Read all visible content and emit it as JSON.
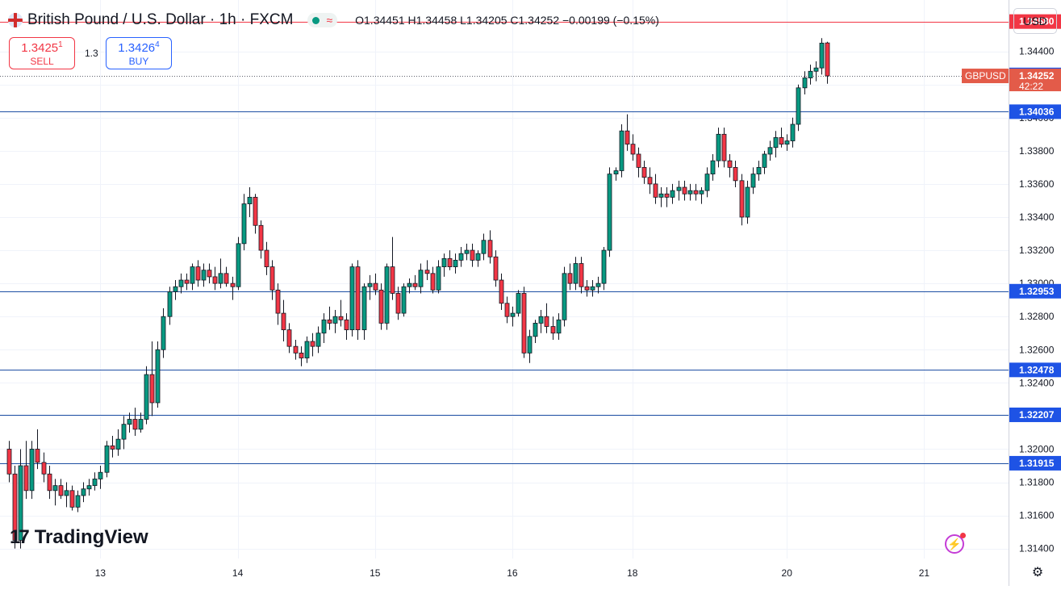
{
  "header": {
    "symbol_title": "British Pound / U.S. Dollar · 1h · FXCM",
    "ohlc": "O1.34451 H1.34458 L1.34205 C1.34252 −0.00199 (−0.15%)"
  },
  "trade": {
    "sell_price_main": "1.3425",
    "sell_price_sup": "1",
    "sell_label": "SELL",
    "buy_price_main": "1.3426",
    "buy_price_sup": "4",
    "buy_label": "BUY",
    "spread": "1.3"
  },
  "currency": "USD",
  "logo": "TradingView",
  "colors": {
    "up": "#089981",
    "down": "#f23645",
    "level_line": "#1e4fa3",
    "resistance_line": "#f23645",
    "current_price_tag": "#e35b49",
    "level_tag": "#1e53e5"
  },
  "icons": [
    "flag-icon",
    "market-status-icon",
    "bolt-icon",
    "settings-icon"
  ],
  "chart_data": {
    "type": "candlestick",
    "symbol": "GBPUSD",
    "interval": "1h",
    "ylim": [
      1.3134,
      1.3471
    ],
    "y_ticks": [
      "1.34400",
      "1.34200",
      "1.34000",
      "1.33800",
      "1.33600",
      "1.33400",
      "1.33200",
      "1.33000",
      "1.32800",
      "1.32600",
      "1.32400",
      "1.32200",
      "1.32000",
      "1.31800",
      "1.31600",
      "1.31400"
    ],
    "x_tick_labels": [
      {
        "label": "13",
        "bar": 16
      },
      {
        "label": "14",
        "bar": 40
      },
      {
        "label": "15",
        "bar": 64
      },
      {
        "label": "16",
        "bar": 88
      },
      {
        "label": "18",
        "bar": 109
      },
      {
        "label": "20",
        "bar": 136
      },
      {
        "label": "21",
        "bar": 160
      }
    ],
    "horizontal_levels": [
      {
        "value": 1.3458,
        "label": "1.34580",
        "kind": "resistance"
      },
      {
        "value": 1.34036,
        "label": "1.34036",
        "kind": "level"
      },
      {
        "value": 1.32953,
        "label": "1.32953",
        "kind": "level"
      },
      {
        "value": 1.32478,
        "label": "1.32478",
        "kind": "level"
      },
      {
        "value": 1.32207,
        "label": "1.32207",
        "kind": "level"
      },
      {
        "value": 1.31915,
        "label": "1.31915",
        "kind": "level"
      }
    ],
    "ask_price": "1.34258",
    "last_price": {
      "value": 1.34252,
      "label": "1.34252",
      "symbol_label": "GBPUSD",
      "countdown": "42:22"
    },
    "candles": [
      [
        1.32,
        1.3205,
        1.318,
        1.3185
      ],
      [
        1.3185,
        1.319,
        1.314,
        1.3145
      ],
      [
        1.3145,
        1.32,
        1.314,
        1.319
      ],
      [
        1.319,
        1.3205,
        1.317,
        1.3175
      ],
      [
        1.3175,
        1.3205,
        1.317,
        1.32
      ],
      [
        1.32,
        1.3212,
        1.3188,
        1.3192
      ],
      [
        1.3192,
        1.3198,
        1.318,
        1.3185
      ],
      [
        1.3185,
        1.319,
        1.317,
        1.3175
      ],
      [
        1.3175,
        1.3182,
        1.3166,
        1.3178
      ],
      [
        1.3178,
        1.3182,
        1.317,
        1.3172
      ],
      [
        1.3172,
        1.318,
        1.3165,
        1.3175
      ],
      [
        1.3175,
        1.3178,
        1.3163,
        1.3165
      ],
      [
        1.3165,
        1.3175,
        1.3162,
        1.3172
      ],
      [
        1.3172,
        1.318,
        1.3168,
        1.3176
      ],
      [
        1.3176,
        1.3182,
        1.3172,
        1.3178
      ],
      [
        1.3178,
        1.3186,
        1.3175,
        1.3182
      ],
      [
        1.3182,
        1.319,
        1.3176,
        1.3186
      ],
      [
        1.3186,
        1.3205,
        1.3183,
        1.3202
      ],
      [
        1.3202,
        1.3208,
        1.3195,
        1.32
      ],
      [
        1.32,
        1.3212,
        1.3196,
        1.3206
      ],
      [
        1.3206,
        1.322,
        1.32,
        1.3215
      ],
      [
        1.3215,
        1.3222,
        1.321,
        1.3218
      ],
      [
        1.3218,
        1.3225,
        1.3208,
        1.3212
      ],
      [
        1.3212,
        1.3222,
        1.321,
        1.3218
      ],
      [
        1.3218,
        1.325,
        1.3215,
        1.3245
      ],
      [
        1.3245,
        1.3265,
        1.322,
        1.3228
      ],
      [
        1.3228,
        1.3265,
        1.3225,
        1.326
      ],
      [
        1.326,
        1.3285,
        1.3255,
        1.328
      ],
      [
        1.328,
        1.3298,
        1.3275,
        1.3295
      ],
      [
        1.3295,
        1.3302,
        1.329,
        1.3298
      ],
      [
        1.3298,
        1.3306,
        1.3294,
        1.3302
      ],
      [
        1.3302,
        1.3306,
        1.3296,
        1.33
      ],
      [
        1.33,
        1.3312,
        1.3296,
        1.331
      ],
      [
        1.331,
        1.3314,
        1.3298,
        1.3302
      ],
      [
        1.3302,
        1.3312,
        1.3298,
        1.3308
      ],
      [
        1.3308,
        1.3312,
        1.33,
        1.3304
      ],
      [
        1.3304,
        1.331,
        1.3296,
        1.33
      ],
      [
        1.33,
        1.3315,
        1.3297,
        1.3306
      ],
      [
        1.3306,
        1.331,
        1.3298,
        1.33
      ],
      [
        1.33,
        1.3304,
        1.329,
        1.3298
      ],
      [
        1.3298,
        1.3328,
        1.3296,
        1.3324
      ],
      [
        1.3324,
        1.3354,
        1.332,
        1.3348
      ],
      [
        1.3348,
        1.3358,
        1.334,
        1.3352
      ],
      [
        1.3352,
        1.3354,
        1.333,
        1.3335
      ],
      [
        1.3335,
        1.3338,
        1.3315,
        1.332
      ],
      [
        1.332,
        1.3325,
        1.3305,
        1.331
      ],
      [
        1.331,
        1.3314,
        1.329,
        1.3296
      ],
      [
        1.3296,
        1.33,
        1.3275,
        1.3282
      ],
      [
        1.3282,
        1.329,
        1.3265,
        1.3272
      ],
      [
        1.3272,
        1.3276,
        1.3258,
        1.3262
      ],
      [
        1.3262,
        1.3266,
        1.3254,
        1.3258
      ],
      [
        1.3258,
        1.3262,
        1.325,
        1.3255
      ],
      [
        1.3255,
        1.3268,
        1.3252,
        1.3265
      ],
      [
        1.3265,
        1.327,
        1.3256,
        1.3262
      ],
      [
        1.3262,
        1.3274,
        1.3258,
        1.327
      ],
      [
        1.327,
        1.3282,
        1.3264,
        1.3278
      ],
      [
        1.3278,
        1.3286,
        1.3272,
        1.3276
      ],
      [
        1.3276,
        1.3284,
        1.327,
        1.328
      ],
      [
        1.328,
        1.329,
        1.3274,
        1.3278
      ],
      [
        1.3278,
        1.3282,
        1.3266,
        1.3272
      ],
      [
        1.3272,
        1.3312,
        1.3268,
        1.331
      ],
      [
        1.331,
        1.3314,
        1.3266,
        1.3272
      ],
      [
        1.3272,
        1.33,
        1.3266,
        1.3298
      ],
      [
        1.3298,
        1.3305,
        1.329,
        1.33
      ],
      [
        1.33,
        1.3306,
        1.3293,
        1.3296
      ],
      [
        1.3296,
        1.33,
        1.3272,
        1.3276
      ],
      [
        1.3276,
        1.3312,
        1.3272,
        1.331
      ],
      [
        1.331,
        1.3328,
        1.329,
        1.3294
      ],
      [
        1.3294,
        1.3298,
        1.3278,
        1.3282
      ],
      [
        1.3282,
        1.33,
        1.328,
        1.3298
      ],
      [
        1.3298,
        1.3303,
        1.3294,
        1.33
      ],
      [
        1.33,
        1.3305,
        1.3296,
        1.3298
      ],
      [
        1.3298,
        1.3312,
        1.3294,
        1.3308
      ],
      [
        1.3308,
        1.3314,
        1.3302,
        1.3306
      ],
      [
        1.3306,
        1.331,
        1.3294,
        1.3296
      ],
      [
        1.3296,
        1.3314,
        1.3294,
        1.331
      ],
      [
        1.331,
        1.3318,
        1.3304,
        1.3315
      ],
      [
        1.3315,
        1.332,
        1.3308,
        1.331
      ],
      [
        1.331,
        1.3318,
        1.3306,
        1.3314
      ],
      [
        1.3314,
        1.3322,
        1.331,
        1.3318
      ],
      [
        1.3318,
        1.3324,
        1.3314,
        1.332
      ],
      [
        1.332,
        1.3324,
        1.331,
        1.3314
      ],
      [
        1.3314,
        1.332,
        1.331,
        1.3318
      ],
      [
        1.3318,
        1.333,
        1.3314,
        1.3326
      ],
      [
        1.3326,
        1.3332,
        1.3312,
        1.3316
      ],
      [
        1.3316,
        1.332,
        1.3298,
        1.3302
      ],
      [
        1.3302,
        1.3306,
        1.3284,
        1.3288
      ],
      [
        1.3288,
        1.3292,
        1.3276,
        1.328
      ],
      [
        1.328,
        1.3286,
        1.3274,
        1.3282
      ],
      [
        1.3282,
        1.3296,
        1.328,
        1.3294
      ],
      [
        1.3294,
        1.3298,
        1.3255,
        1.3258
      ],
      [
        1.3258,
        1.3272,
        1.3252,
        1.3268
      ],
      [
        1.3268,
        1.3278,
        1.3264,
        1.3276
      ],
      [
        1.3276,
        1.3284,
        1.327,
        1.328
      ],
      [
        1.328,
        1.3288,
        1.327,
        1.3274
      ],
      [
        1.3274,
        1.328,
        1.3266,
        1.327
      ],
      [
        1.327,
        1.3282,
        1.3266,
        1.3278
      ],
      [
        1.3278,
        1.331,
        1.3274,
        1.3306
      ],
      [
        1.3306,
        1.3312,
        1.3296,
        1.33
      ],
      [
        1.33,
        1.3316,
        1.3296,
        1.3312
      ],
      [
        1.3312,
        1.3316,
        1.3294,
        1.3298
      ],
      [
        1.3298,
        1.3302,
        1.3292,
        1.3296
      ],
      [
        1.3296,
        1.3302,
        1.3292,
        1.3298
      ],
      [
        1.3298,
        1.3304,
        1.3294,
        1.33
      ],
      [
        1.33,
        1.3322,
        1.3296,
        1.332
      ],
      [
        1.332,
        1.337,
        1.3316,
        1.3366
      ],
      [
        1.3366,
        1.337,
        1.3362,
        1.3368
      ],
      [
        1.3368,
        1.3396,
        1.3364,
        1.3392
      ],
      [
        1.3392,
        1.3402,
        1.338,
        1.3384
      ],
      [
        1.3384,
        1.339,
        1.3374,
        1.3378
      ],
      [
        1.3378,
        1.3382,
        1.3364,
        1.337
      ],
      [
        1.337,
        1.3374,
        1.336,
        1.3364
      ],
      [
        1.3364,
        1.337,
        1.3354,
        1.336
      ],
      [
        1.336,
        1.3366,
        1.3348,
        1.3352
      ],
      [
        1.3352,
        1.3358,
        1.3346,
        1.3354
      ],
      [
        1.3354,
        1.3358,
        1.3346,
        1.3352
      ],
      [
        1.3352,
        1.336,
        1.3348,
        1.3356
      ],
      [
        1.3356,
        1.3362,
        1.335,
        1.3358
      ],
      [
        1.3358,
        1.3362,
        1.335,
        1.3354
      ],
      [
        1.3354,
        1.336,
        1.335,
        1.3356
      ],
      [
        1.3356,
        1.336,
        1.335,
        1.3354
      ],
      [
        1.3354,
        1.3358,
        1.3348,
        1.3356
      ],
      [
        1.3356,
        1.337,
        1.3352,
        1.3366
      ],
      [
        1.3366,
        1.3378,
        1.3362,
        1.3374
      ],
      [
        1.3374,
        1.3394,
        1.337,
        1.339
      ],
      [
        1.339,
        1.3394,
        1.337,
        1.3374
      ],
      [
        1.3374,
        1.3378,
        1.3364,
        1.337
      ],
      [
        1.337,
        1.3374,
        1.3358,
        1.3362
      ],
      [
        1.3362,
        1.3366,
        1.3335,
        1.334
      ],
      [
        1.334,
        1.3362,
        1.3336,
        1.3358
      ],
      [
        1.3358,
        1.337,
        1.3354,
        1.3366
      ],
      [
        1.3366,
        1.3374,
        1.3362,
        1.337
      ],
      [
        1.337,
        1.338,
        1.3366,
        1.3378
      ],
      [
        1.3378,
        1.3386,
        1.3374,
        1.3382
      ],
      [
        1.3382,
        1.3392,
        1.3376,
        1.3388
      ],
      [
        1.3388,
        1.3394,
        1.3382,
        1.3384
      ],
      [
        1.3384,
        1.339,
        1.338,
        1.3386
      ],
      [
        1.3386,
        1.34,
        1.3382,
        1.3396
      ],
      [
        1.3396,
        1.342,
        1.3392,
        1.3418
      ],
      [
        1.3418,
        1.3428,
        1.3414,
        1.3424
      ],
      [
        1.3424,
        1.3432,
        1.342,
        1.3428
      ],
      [
        1.3428,
        1.3434,
        1.3422,
        1.343
      ],
      [
        1.343,
        1.3448,
        1.3426,
        1.3445
      ],
      [
        1.34451,
        1.34458,
        1.34205,
        1.34252
      ]
    ]
  }
}
